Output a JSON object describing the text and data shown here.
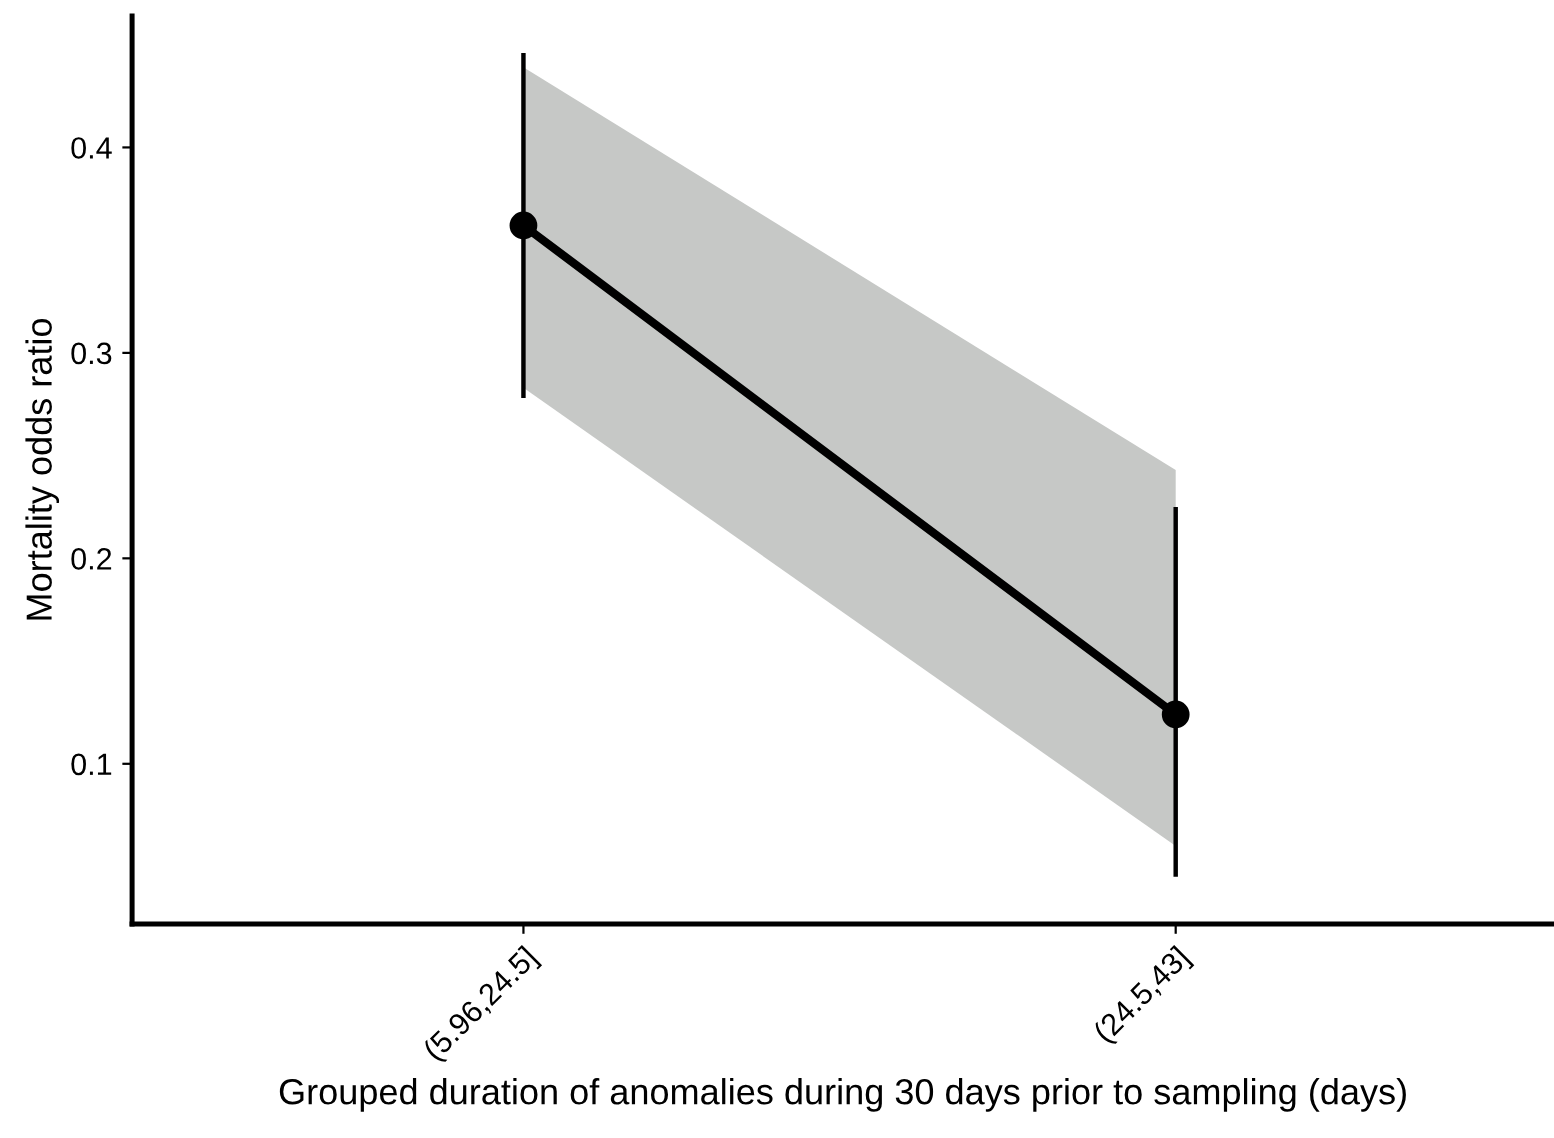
{
  "chart_data": {
    "type": "line",
    "xlabel": "Grouped duration of anomalies during 30 days prior to sampling (days)",
    "ylabel": "Mortality odds ratio",
    "categories": [
      "(5.96,24.5]",
      "(24.5,43]"
    ],
    "series": [
      {
        "color": "#000000",
        "values": [
          0.362,
          0.124
        ],
        "errors": [
          [
            0.278,
            0.446
          ],
          [
            0.045,
            0.225
          ]
        ],
        "lower": [
          0.283,
          0.06
        ],
        "upper": [
          0.439,
          0.243
        ]
      }
    ],
    "ylim": [
      0.022,
      0.464
    ],
    "yticks": [
      0.1,
      0.2,
      0.3,
      0.4
    ],
    "marker": "circle",
    "line_style": "solid",
    "grid": false,
    "legend": false
  }
}
